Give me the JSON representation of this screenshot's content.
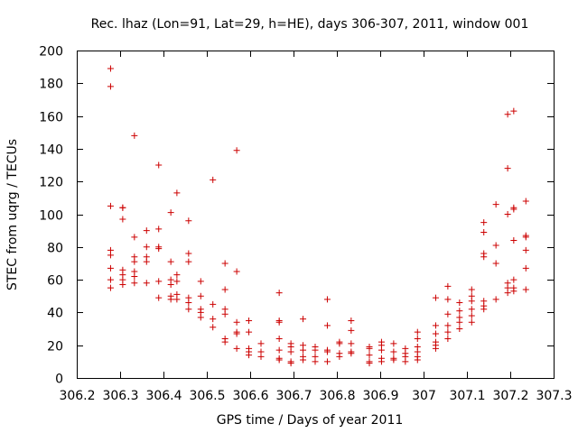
{
  "chart_data": {
    "type": "scatter",
    "title": "Rec. lhaz (Lon=91, Lat=29, h=HE), days 306-307, 2011, window 001",
    "xlabel": "GPS time / Days of year 2011",
    "ylabel": "STEC from uqrg / TECUs",
    "xlim": [
      306.2,
      307.3
    ],
    "ylim": [
      0,
      200
    ],
    "xticks": [
      "306.2",
      "306.3",
      "306.4",
      "306.5",
      "306.6",
      "306.7",
      "306.8",
      "306.9",
      "307",
      "307.1",
      "307.2",
      "307.3"
    ],
    "yticks": [
      "0",
      "20",
      "40",
      "60",
      "80",
      "100",
      "120",
      "140",
      "160",
      "180",
      "200"
    ],
    "grid": false,
    "marker": "+",
    "color": "#cc0000",
    "series": [
      {
        "name": "STEC",
        "points": [
          [
            306.278,
            189
          ],
          [
            306.278,
            178
          ],
          [
            306.278,
            105
          ],
          [
            306.278,
            78
          ],
          [
            306.278,
            75
          ],
          [
            306.278,
            67
          ],
          [
            306.278,
            60
          ],
          [
            306.278,
            55
          ],
          [
            306.306,
            104
          ],
          [
            306.306,
            104
          ],
          [
            306.306,
            97
          ],
          [
            306.306,
            66
          ],
          [
            306.306,
            63
          ],
          [
            306.306,
            60
          ],
          [
            306.306,
            57
          ],
          [
            306.333,
            148
          ],
          [
            306.333,
            86
          ],
          [
            306.333,
            74
          ],
          [
            306.333,
            71
          ],
          [
            306.333,
            65
          ],
          [
            306.333,
            62
          ],
          [
            306.333,
            58
          ],
          [
            306.361,
            90
          ],
          [
            306.361,
            80
          ],
          [
            306.361,
            74
          ],
          [
            306.361,
            71
          ],
          [
            306.361,
            58
          ],
          [
            306.389,
            130
          ],
          [
            306.389,
            91
          ],
          [
            306.389,
            80
          ],
          [
            306.389,
            79
          ],
          [
            306.389,
            59
          ],
          [
            306.389,
            49
          ],
          [
            306.417,
            101
          ],
          [
            306.417,
            71
          ],
          [
            306.417,
            60
          ],
          [
            306.417,
            57
          ],
          [
            306.417,
            50
          ],
          [
            306.417,
            48
          ],
          [
            306.431,
            113
          ],
          [
            306.431,
            63
          ],
          [
            306.431,
            59
          ],
          [
            306.431,
            51
          ],
          [
            306.431,
            48
          ],
          [
            306.458,
            96
          ],
          [
            306.458,
            76
          ],
          [
            306.458,
            71
          ],
          [
            306.458,
            49
          ],
          [
            306.458,
            46
          ],
          [
            306.458,
            42
          ],
          [
            306.486,
            59
          ],
          [
            306.486,
            50
          ],
          [
            306.486,
            42
          ],
          [
            306.486,
            40
          ],
          [
            306.486,
            37
          ],
          [
            306.514,
            121
          ],
          [
            306.514,
            45
          ],
          [
            306.514,
            36
          ],
          [
            306.514,
            31
          ],
          [
            306.542,
            70
          ],
          [
            306.542,
            54
          ],
          [
            306.542,
            42
          ],
          [
            306.542,
            39
          ],
          [
            306.542,
            24
          ],
          [
            306.542,
            22
          ],
          [
            306.569,
            139
          ],
          [
            306.569,
            65
          ],
          [
            306.569,
            34
          ],
          [
            306.569,
            28
          ],
          [
            306.569,
            27
          ],
          [
            306.569,
            18
          ],
          [
            306.597,
            35
          ],
          [
            306.597,
            28
          ],
          [
            306.597,
            18
          ],
          [
            306.597,
            16
          ],
          [
            306.597,
            14
          ],
          [
            306.625,
            21
          ],
          [
            306.625,
            16
          ],
          [
            306.625,
            13
          ],
          [
            306.667,
            52
          ],
          [
            306.667,
            35
          ],
          [
            306.667,
            34
          ],
          [
            306.667,
            24
          ],
          [
            306.667,
            17
          ],
          [
            306.667,
            12
          ],
          [
            306.667,
            11
          ],
          [
            306.694,
            21
          ],
          [
            306.694,
            19
          ],
          [
            306.694,
            16
          ],
          [
            306.694,
            10
          ],
          [
            306.694,
            9
          ],
          [
            306.722,
            36
          ],
          [
            306.722,
            20
          ],
          [
            306.722,
            17
          ],
          [
            306.722,
            13
          ],
          [
            306.722,
            11
          ],
          [
            306.75,
            19
          ],
          [
            306.75,
            17
          ],
          [
            306.75,
            13
          ],
          [
            306.75,
            10
          ],
          [
            306.778,
            48
          ],
          [
            306.778,
            32
          ],
          [
            306.778,
            17
          ],
          [
            306.778,
            16
          ],
          [
            306.778,
            10
          ],
          [
            306.806,
            22
          ],
          [
            306.806,
            21
          ],
          [
            306.806,
            15
          ],
          [
            306.806,
            13
          ],
          [
            306.833,
            35
          ],
          [
            306.833,
            29
          ],
          [
            306.833,
            21
          ],
          [
            306.833,
            16
          ],
          [
            306.833,
            15
          ],
          [
            306.875,
            19
          ],
          [
            306.875,
            18
          ],
          [
            306.875,
            14
          ],
          [
            306.875,
            10
          ],
          [
            306.875,
            9
          ],
          [
            306.903,
            22
          ],
          [
            306.903,
            20
          ],
          [
            306.903,
            17
          ],
          [
            306.903,
            12
          ],
          [
            306.903,
            10
          ],
          [
            306.931,
            21
          ],
          [
            306.931,
            16
          ],
          [
            306.931,
            12
          ],
          [
            306.931,
            11
          ],
          [
            306.958,
            18
          ],
          [
            306.958,
            15
          ],
          [
            306.958,
            13
          ],
          [
            306.958,
            10
          ],
          [
            306.986,
            28
          ],
          [
            306.986,
            24
          ],
          [
            306.986,
            19
          ],
          [
            306.986,
            16
          ],
          [
            306.986,
            13
          ],
          [
            306.986,
            11
          ],
          [
            307.028,
            49
          ],
          [
            307.028,
            32
          ],
          [
            307.028,
            27
          ],
          [
            307.028,
            22
          ],
          [
            307.028,
            20
          ],
          [
            307.028,
            18
          ],
          [
            307.056,
            56
          ],
          [
            307.056,
            48
          ],
          [
            307.056,
            39
          ],
          [
            307.056,
            32
          ],
          [
            307.056,
            28
          ],
          [
            307.056,
            24
          ],
          [
            307.083,
            46
          ],
          [
            307.083,
            41
          ],
          [
            307.083,
            37
          ],
          [
            307.083,
            34
          ],
          [
            307.083,
            30
          ],
          [
            307.111,
            54
          ],
          [
            307.111,
            50
          ],
          [
            307.111,
            47
          ],
          [
            307.111,
            42
          ],
          [
            307.111,
            38
          ],
          [
            307.111,
            34
          ],
          [
            307.139,
            95
          ],
          [
            307.139,
            89
          ],
          [
            307.139,
            76
          ],
          [
            307.139,
            74
          ],
          [
            307.139,
            47
          ],
          [
            307.139,
            44
          ],
          [
            307.139,
            42
          ],
          [
            307.167,
            106
          ],
          [
            307.167,
            81
          ],
          [
            307.167,
            70
          ],
          [
            307.167,
            48
          ],
          [
            307.194,
            161
          ],
          [
            307.194,
            128
          ],
          [
            307.194,
            100
          ],
          [
            307.194,
            58
          ],
          [
            307.194,
            55
          ],
          [
            307.194,
            52
          ],
          [
            307.208,
            163
          ],
          [
            307.208,
            104
          ],
          [
            307.208,
            103
          ],
          [
            307.208,
            84
          ],
          [
            307.208,
            60
          ],
          [
            307.208,
            55
          ],
          [
            307.208,
            53
          ],
          [
            307.236,
            108
          ],
          [
            307.236,
            87
          ],
          [
            307.236,
            86
          ],
          [
            307.236,
            78
          ],
          [
            307.236,
            67
          ],
          [
            307.236,
            54
          ]
        ]
      }
    ]
  }
}
